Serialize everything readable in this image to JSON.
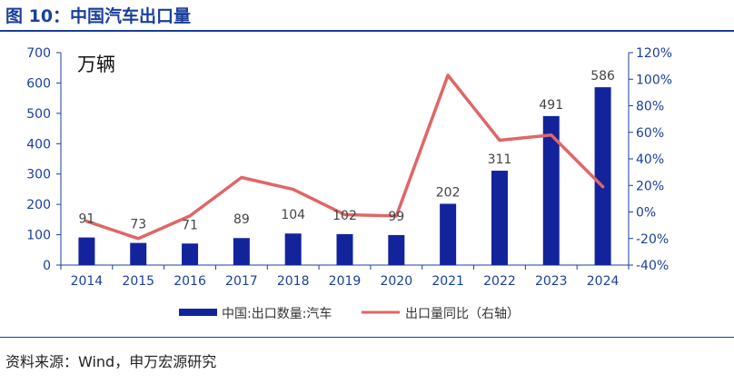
{
  "header": {
    "title": "图 10：中国汽车出口量"
  },
  "source": "资料来源：Wind，申万宏源研究",
  "colors": {
    "title": "#1a3f9c",
    "bar": "#13239c",
    "line": "#e06666",
    "axis": "#1a3f9c",
    "value_label": "#444444"
  },
  "chart_data": {
    "type": "bar",
    "title": "",
    "unit_label": "万辆",
    "categories": [
      "2014",
      "2015",
      "2016",
      "2017",
      "2018",
      "2019",
      "2020",
      "2021",
      "2022",
      "2023",
      "2024"
    ],
    "series": [
      {
        "name": "中国:出口数量:汽车",
        "type": "bar",
        "axis": "left",
        "values": [
          91,
          73,
          71,
          89,
          104,
          102,
          99,
          202,
          311,
          491,
          586
        ]
      },
      {
        "name": "出口量同比（右轴）",
        "type": "line",
        "axis": "right",
        "values": [
          -7,
          -20,
          -3,
          26,
          17,
          -2,
          -3,
          103,
          54,
          58,
          19
        ]
      }
    ],
    "y_left": {
      "min": 0,
      "max": 700,
      "step": 100,
      "ticks": [
        "0",
        "100",
        "200",
        "300",
        "400",
        "500",
        "600",
        "700"
      ]
    },
    "y_right": {
      "min": -40,
      "max": 120,
      "step": 20,
      "ticks": [
        "-40%",
        "-20%",
        "0%",
        "20%",
        "40%",
        "60%",
        "80%",
        "100%",
        "120%"
      ]
    },
    "grid": false,
    "legend_position": "bottom"
  }
}
